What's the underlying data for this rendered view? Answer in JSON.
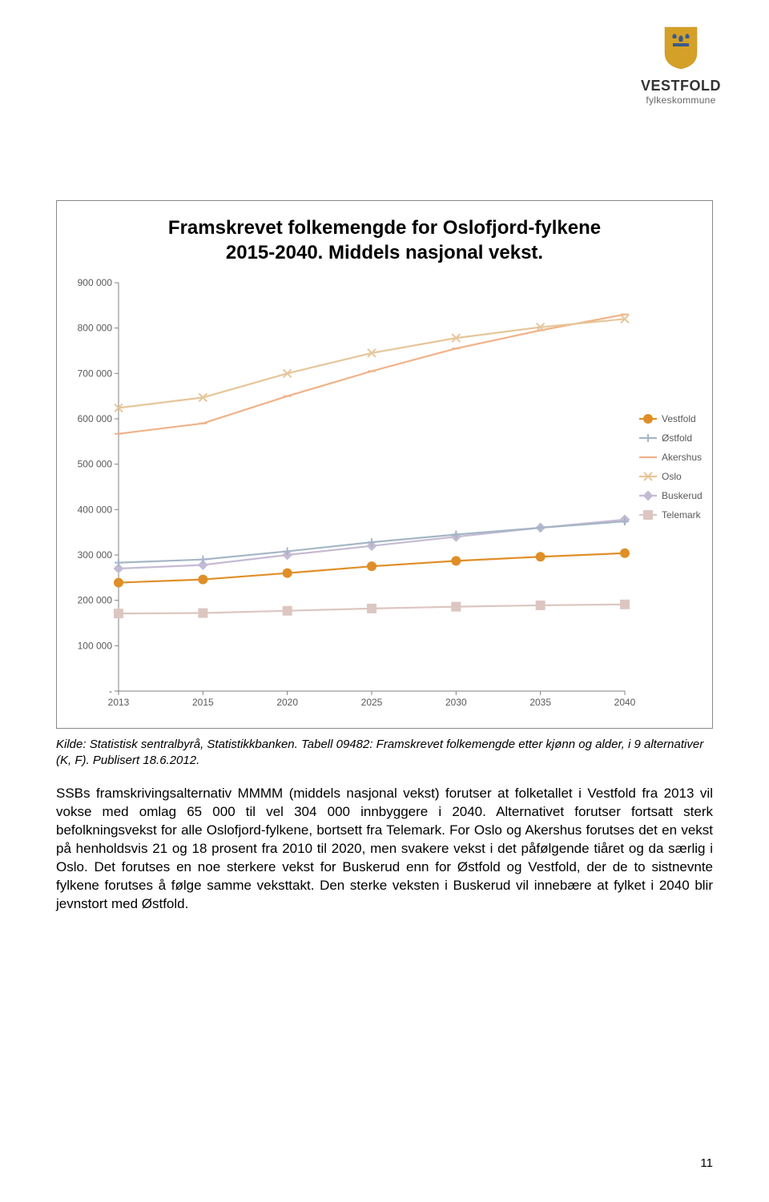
{
  "logo": {
    "text1": "VESTFOLD",
    "text2": "fylkeskommune",
    "shield_color": "#d4a028",
    "crown_color": "#3a5a8a"
  },
  "chart": {
    "type": "line",
    "title_line1": "Framskrevet folkemengde for Oslofjord-fylkene",
    "title_line2": "2015-2040. Middels nasjonal vekst.",
    "title_fontsize": 24,
    "background_color": "#ffffff",
    "border_color": "#888888",
    "axis_color": "#808080",
    "label_color": "#595959",
    "label_fontsize": 12,
    "line_width": 2.2,
    "marker_size": 5,
    "x_categories": [
      "2013",
      "2015",
      "2020",
      "2025",
      "2030",
      "2035",
      "2040"
    ],
    "ylim": [
      0,
      900000
    ],
    "ytick_step": 100000,
    "y_tick_labels": [
      "-",
      "100 000",
      "200 000",
      "300 000",
      "400 000",
      "500 000",
      "600 000",
      "700 000",
      "800 000",
      "900 000"
    ],
    "legend": {
      "position": "right",
      "entries": [
        {
          "name": "Vestfold",
          "color": "#e08e27",
          "marker": "circle"
        },
        {
          "name": "Østfold",
          "color": "#a5b6c6",
          "marker": "plus"
        },
        {
          "name": "Akershus",
          "color": "#f0b288",
          "marker": "dash"
        },
        {
          "name": "Oslo",
          "color": "#e6c69a",
          "marker": "x"
        },
        {
          "name": "Buskerud",
          "color": "#c5bad3",
          "marker": "diamond"
        },
        {
          "name": "Telemark",
          "color": "#dcc6c1",
          "marker": "square"
        }
      ]
    },
    "series": [
      {
        "name": "Akershus",
        "color": "#f0b288",
        "marker": "dash",
        "values": [
          567000,
          590000,
          650000,
          705000,
          755000,
          795000,
          830000
        ]
      },
      {
        "name": "Oslo",
        "color": "#e6c69a",
        "marker": "x",
        "values": [
          624000,
          647000,
          700000,
          745000,
          778000,
          802000,
          820000
        ]
      },
      {
        "name": "Buskerud",
        "color": "#c5bad3",
        "marker": "diamond",
        "values": [
          270000,
          278000,
          300000,
          320000,
          340000,
          360000,
          378000
        ]
      },
      {
        "name": "Østfold",
        "color": "#a5b6c6",
        "marker": "plus",
        "values": [
          283000,
          290000,
          308000,
          328000,
          345000,
          360000,
          374000
        ]
      },
      {
        "name": "Vestfold",
        "color": "#e08e27",
        "marker": "circle",
        "values": [
          239000,
          246000,
          260000,
          275000,
          287000,
          296000,
          304000
        ]
      },
      {
        "name": "Telemark",
        "color": "#dcc6c1",
        "marker": "square",
        "values": [
          171000,
          172000,
          177000,
          182000,
          186000,
          189000,
          191000
        ]
      }
    ]
  },
  "source": "Kilde: Statistisk sentralbyrå, Statistikkbanken. Tabell 09482: Framskrevet folkemengde etter kjønn og alder, i 9 alternativer (K, F). Publisert 18.6.2012.",
  "body_text": "SSBs framskrivingsalternativ MMMM (middels nasjonal vekst) forutser at folketallet i Vestfold fra 2013 vil vokse med omlag 65 000 til vel 304 000 innbyggere i 2040. Alternativet forutser fortsatt sterk befolkningsvekst for alle Oslofjord-fylkene, bortsett fra Telemark. For Oslo og Akershus forutses det en vekst på henholdsvis 21 og 18 prosent fra 2010 til 2020, men svakere vekst i det påfølgende tiåret og da særlig i Oslo. Det forutses en noe sterkere vekst for Buskerud enn for Østfold og Vestfold, der de to sistnevnte fylkene forutses å følge samme veksttakt. Den sterke veksten i Buskerud vil innebære at fylket i 2040 blir jevnstort med Østfold.",
  "page_number": "11"
}
